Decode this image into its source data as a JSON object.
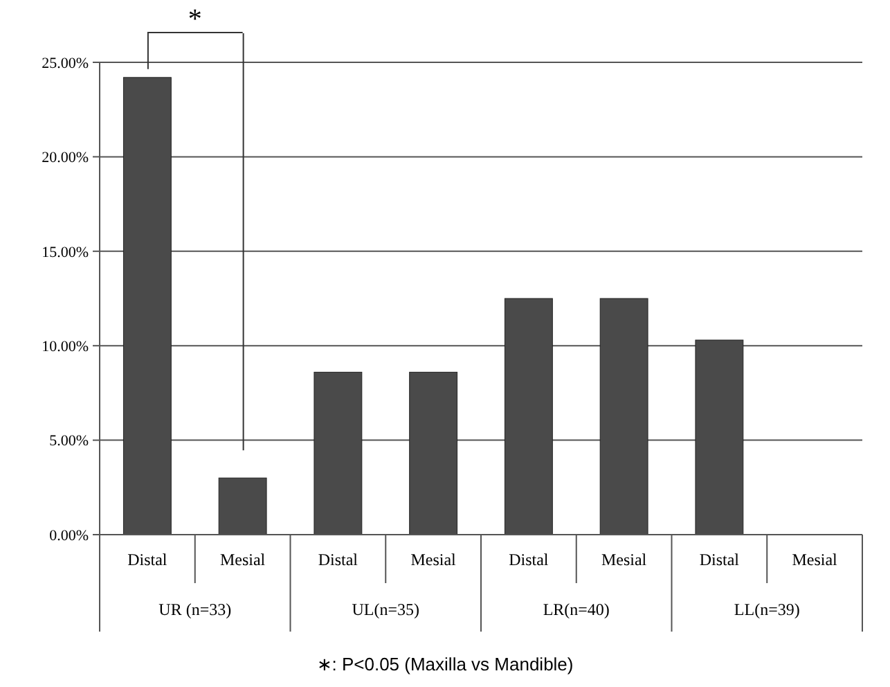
{
  "chart_data": {
    "type": "bar",
    "categories": [
      "Distal",
      "Mesial",
      "Distal",
      "Mesial",
      "Distal",
      "Mesial",
      "Distal",
      "Mesial"
    ],
    "values": [
      24.2,
      3.0,
      8.6,
      8.6,
      12.5,
      12.5,
      10.3,
      0
    ],
    "color": "#4a4a4a",
    "ylim": [
      0,
      25
    ],
    "yticks": [
      {
        "value": 0,
        "label": "0.00%"
      },
      {
        "value": 5,
        "label": "5.00%"
      },
      {
        "value": 10,
        "label": "10.00%"
      },
      {
        "value": 15,
        "label": "15.00%"
      },
      {
        "value": 20,
        "label": "20.00%"
      },
      {
        "value": 25,
        "label": "25.00%"
      }
    ],
    "grid": "y",
    "annotations": [
      "*",
      "UR (n=33)",
      "UL(n=35)",
      "LR(n=40)",
      "LL(n=39)",
      "∗: P<0.05 (Maxilla vs Mandible)"
    ]
  }
}
